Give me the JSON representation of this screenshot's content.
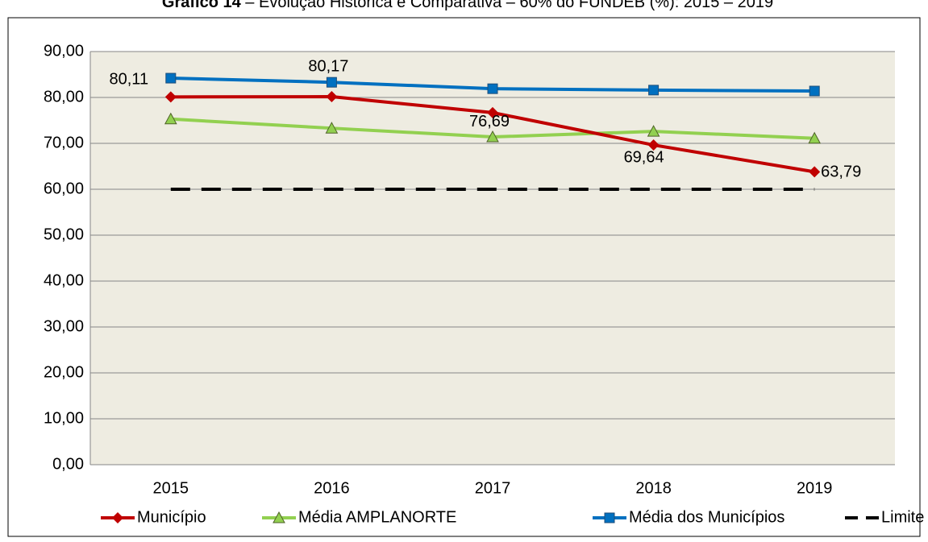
{
  "chart_data": {
    "type": "line",
    "title_number": "Gráfico 14",
    "title": " – Evolução Histórica e Comparativa – 60% do FUNDEB (%): 2015 – 2019",
    "categories": [
      "2015",
      "2016",
      "2017",
      "2018",
      "2019"
    ],
    "series": [
      {
        "name": "Município",
        "color": "#c00000",
        "marker": "diamond",
        "values": [
          80.11,
          80.17,
          76.69,
          69.64,
          63.79
        ],
        "value_labels": [
          "80,11",
          "80,17",
          "76,69",
          "69,64",
          "63,79"
        ]
      },
      {
        "name": "Média AMPLANORTE",
        "color": "#92d050",
        "marker": "triangle",
        "values": [
          75.3,
          73.3,
          71.4,
          72.6,
          71.1
        ]
      },
      {
        "name": "Média dos Municípios",
        "color": "#0070c0",
        "marker": "square",
        "values": [
          84.2,
          83.3,
          81.9,
          81.6,
          81.4
        ]
      },
      {
        "name": "Limite",
        "color": "#000000",
        "marker": "none",
        "dashed": true,
        "values": [
          60,
          60,
          60,
          60,
          60
        ]
      }
    ],
    "ylim": [
      0,
      90
    ],
    "yticks": [
      {
        "value": 0,
        "label": "0,00"
      },
      {
        "value": 10,
        "label": "10,00"
      },
      {
        "value": 20,
        "label": "20,00"
      },
      {
        "value": 30,
        "label": "30,00"
      },
      {
        "value": 40,
        "label": "40,00"
      },
      {
        "value": 50,
        "label": "50,00"
      },
      {
        "value": 60,
        "label": "60,00"
      },
      {
        "value": 70,
        "label": "70,00"
      },
      {
        "value": 80,
        "label": "80,00"
      },
      {
        "value": 90,
        "label": "90,00"
      }
    ],
    "grid": true,
    "legend": "bottom",
    "plot_background": "#eeece1"
  }
}
